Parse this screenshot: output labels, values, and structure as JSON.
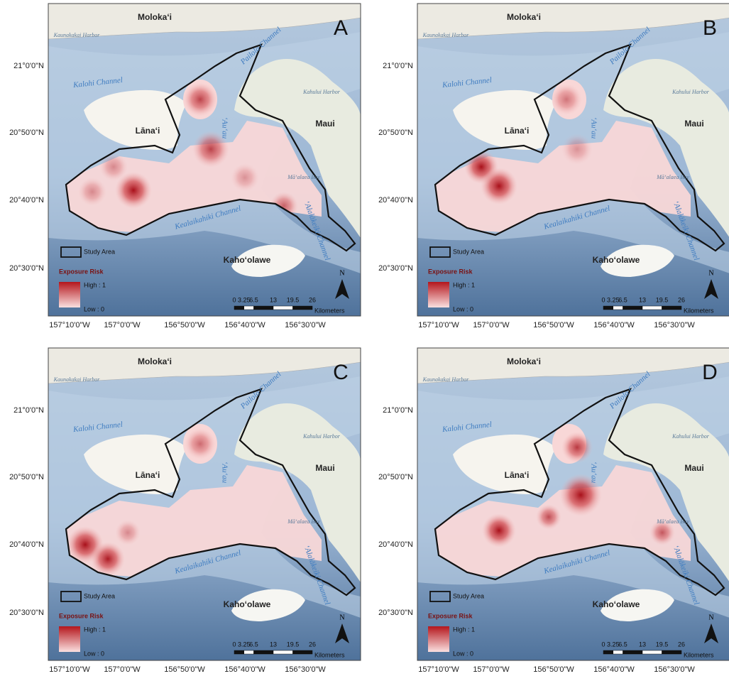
{
  "panels": [
    {
      "letter": "A"
    },
    {
      "letter": "B"
    },
    {
      "letter": "C"
    },
    {
      "letter": "D"
    }
  ],
  "places": {
    "molokai": "Moloka‘i",
    "lanai": "Lāna‘i",
    "maui": "Maui",
    "kahoolawe": "Kaho‘olawe",
    "kaunakakai": "Kaunakakai Harbor",
    "kahului": "Kahului Harbor",
    "maalaea": "Mā‘alaea Bay",
    "kalohi": "Kalohi Channel",
    "pailolo": "Pailolo Channel",
    "auau": "‘Au‘au",
    "kealaikahiki": "Kealaikahiki Channel",
    "alalakeiki": "‘Alalākeiki Channel"
  },
  "legend": {
    "study_area": "Study Area",
    "title": "Exposure Risk",
    "high": "High : 1",
    "low": "Low : 0"
  },
  "scale": {
    "ticks": [
      0,
      3.25,
      6.5,
      13,
      19.5,
      26
    ],
    "unit": "Kilometers"
  },
  "north": "N",
  "latitudes": [
    "21°0'0\"N",
    "20°50'0\"N",
    "20°40'0\"N",
    "20°30'0\"N"
  ],
  "longitudes": [
    "157°10'0\"W",
    "157°0'0\"W",
    "156°50'0\"W",
    "156°40'0\"W",
    "156°30'0\"W"
  ]
}
